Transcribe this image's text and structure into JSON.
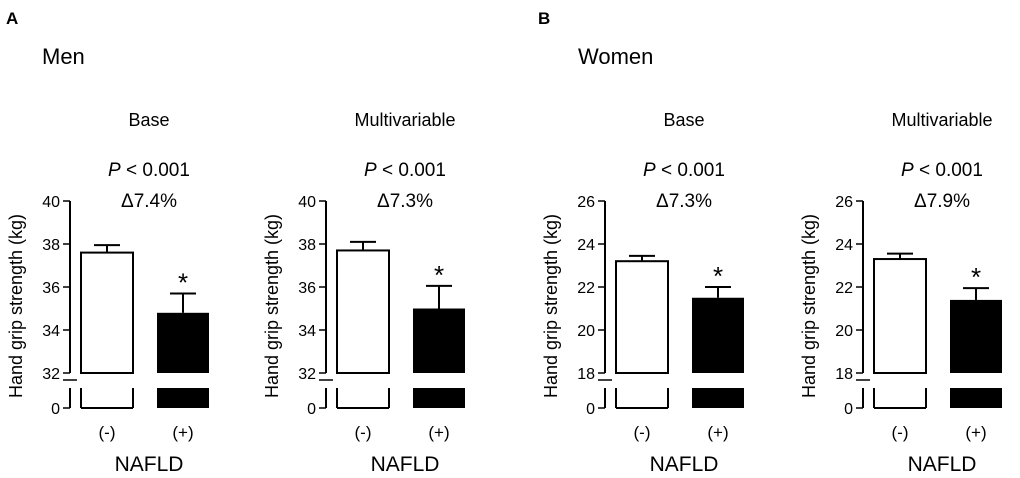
{
  "figure": {
    "groups": [
      {
        "letter": "A",
        "title": "Men"
      },
      {
        "letter": "B",
        "title": "Women"
      }
    ]
  },
  "chart_data": [
    {
      "type": "bar",
      "group": "Men",
      "title": "Base",
      "p_value_label": "P",
      "p_value_text": "< 0.001",
      "delta_text": "Δ7.4%",
      "xlabel": "NAFLD",
      "ylabel": "Hand grip strength (kg)",
      "categories": [
        "(-)",
        "(+)"
      ],
      "values": [
        37.6,
        34.8
      ],
      "error": [
        0.35,
        0.9
      ],
      "significance": [
        "",
        "*"
      ],
      "fills": [
        "#ffffff",
        "#000000"
      ],
      "ylim": [
        32,
        40
      ],
      "yticks": [
        32,
        34,
        36,
        38,
        40
      ],
      "axis_break_tick": 0
    },
    {
      "type": "bar",
      "group": "Men",
      "title": "Multivariable",
      "p_value_label": "P",
      "p_value_text": "< 0.001",
      "delta_text": "Δ7.3%",
      "xlabel": "NAFLD",
      "ylabel": "Hand grip strength (kg)",
      "categories": [
        "(-)",
        "(+)"
      ],
      "values": [
        37.7,
        35.0
      ],
      "error": [
        0.4,
        1.05
      ],
      "significance": [
        "",
        "*"
      ],
      "fills": [
        "#ffffff",
        "#000000"
      ],
      "ylim": [
        32,
        40
      ],
      "yticks": [
        32,
        34,
        36,
        38,
        40
      ],
      "axis_break_tick": 0
    },
    {
      "type": "bar",
      "group": "Women",
      "title": "Base",
      "p_value_label": "P",
      "p_value_text": "< 0.001",
      "delta_text": "Δ7.3%",
      "xlabel": "NAFLD",
      "ylabel": "Hand grip strength (kg)",
      "categories": [
        "(-)",
        "(+)"
      ],
      "values": [
        23.2,
        21.5
      ],
      "error": [
        0.25,
        0.5
      ],
      "significance": [
        "",
        "*"
      ],
      "fills": [
        "#ffffff",
        "#000000"
      ],
      "ylim": [
        18,
        26
      ],
      "yticks": [
        18,
        20,
        22,
        24,
        26
      ],
      "axis_break_tick": 0
    },
    {
      "type": "bar",
      "group": "Women",
      "title": "Multivariable",
      "p_value_label": "P",
      "p_value_text": "< 0.001",
      "delta_text": "Δ7.9%",
      "xlabel": "NAFLD",
      "ylabel": "Hand grip strength (kg)",
      "categories": [
        "(-)",
        "(+)"
      ],
      "values": [
        23.3,
        21.4
      ],
      "error": [
        0.25,
        0.55
      ],
      "significance": [
        "",
        "*"
      ],
      "fills": [
        "#ffffff",
        "#000000"
      ],
      "ylim": [
        18,
        26
      ],
      "yticks": [
        18,
        20,
        22,
        24,
        26
      ],
      "axis_break_tick": 0
    }
  ]
}
